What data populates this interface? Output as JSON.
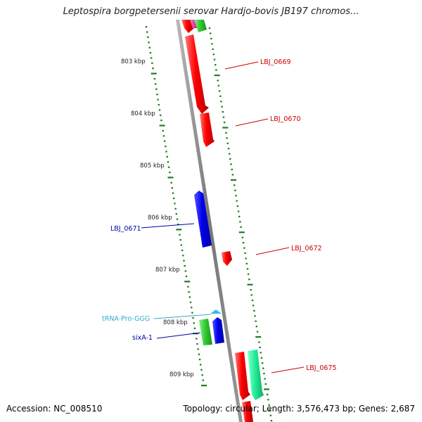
{
  "title": "Leptospira borgpetersenii serovar Hardjo-bovis JB197 chromos...",
  "footer": {
    "accession": "Accession: NC_008510",
    "summary": "Topology: circular; Length: 3,576,473 bp; Genes: 2,687"
  },
  "colors": {
    "backbone": "#8c8c8c",
    "tick": "#1e7a1e",
    "gene_red": "#ee0000",
    "gene_blue": "#0000dd",
    "gene_green": "#33bb33",
    "gene_teal": "#22ee99",
    "trna": "#33bbee",
    "label_red": "#cc0000",
    "label_blue": "#0000aa",
    "label_cyan": "#33aacc"
  },
  "ruler": {
    "ticks": [
      "803 kbp",
      "804 kbp",
      "805 kbp",
      "806 kbp",
      "807 kbp",
      "808 kbp",
      "809 kbp"
    ]
  },
  "features": [
    {
      "label": "LBJ_0669",
      "strand": "+",
      "color_key": "gene_red",
      "label_color": "label_red"
    },
    {
      "label": "LBJ_0670",
      "strand": "+",
      "color_key": "gene_red",
      "label_color": "label_red"
    },
    {
      "label": "LBJ_0671",
      "strand": "-",
      "color_key": "gene_blue",
      "label_color": "label_blue"
    },
    {
      "label": "LBJ_0672",
      "strand": "+",
      "color_key": "gene_red",
      "label_color": "label_red"
    },
    {
      "label": "tRNA-Pro-GGG",
      "strand": "-",
      "color_key": "trna",
      "label_color": "label_cyan"
    },
    {
      "label": "sixA-1",
      "strand": "-",
      "color_key": "gene_blue",
      "label_color": "label_blue"
    },
    {
      "label": "LBJ_0675",
      "strand": "+",
      "color_key": "gene_red",
      "label_color": "label_red"
    }
  ]
}
